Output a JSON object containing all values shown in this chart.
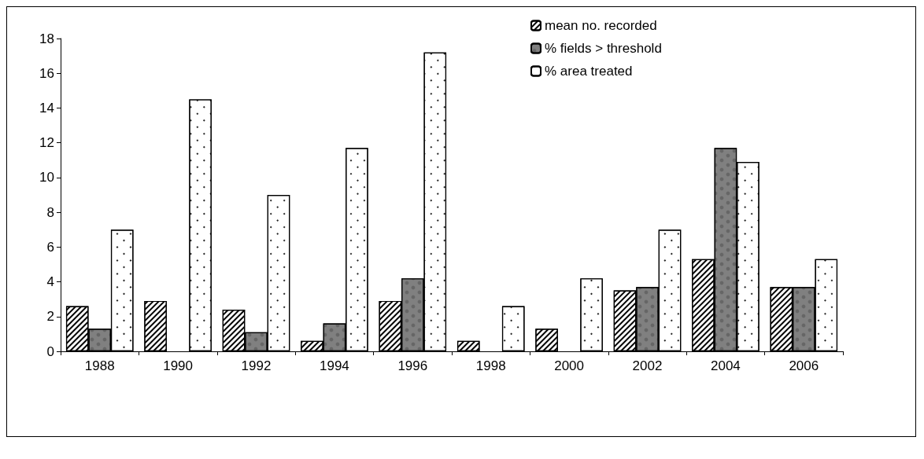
{
  "chart_data": {
    "type": "bar",
    "categories": [
      "1988",
      "1990",
      "1992",
      "1994",
      "1996",
      "1998",
      "2000",
      "2002",
      "2004",
      "2006"
    ],
    "series": [
      {
        "name": "mean no. recorded",
        "color": "#ffffff",
        "values": [
          2.6,
          2.9,
          2.4,
          0.6,
          2.9,
          0.6,
          1.3,
          3.5,
          5.3,
          3.7
        ]
      },
      {
        "name": "% fields > threshold",
        "color": "#808080",
        "values": [
          1.3,
          null,
          1.1,
          1.6,
          4.2,
          null,
          null,
          3.7,
          11.7,
          3.7
        ]
      },
      {
        "name": "% area treated",
        "color": "#ffffff",
        "values": [
          7.0,
          14.5,
          9.0,
          11.7,
          17.2,
          2.6,
          4.2,
          7.0,
          10.9,
          5.3
        ]
      }
    ],
    "ylim": [
      0,
      18
    ],
    "yticks": [
      0,
      2,
      4,
      6,
      8,
      10,
      12,
      14,
      16,
      18
    ],
    "grid": false,
    "legend": "top right"
  }
}
